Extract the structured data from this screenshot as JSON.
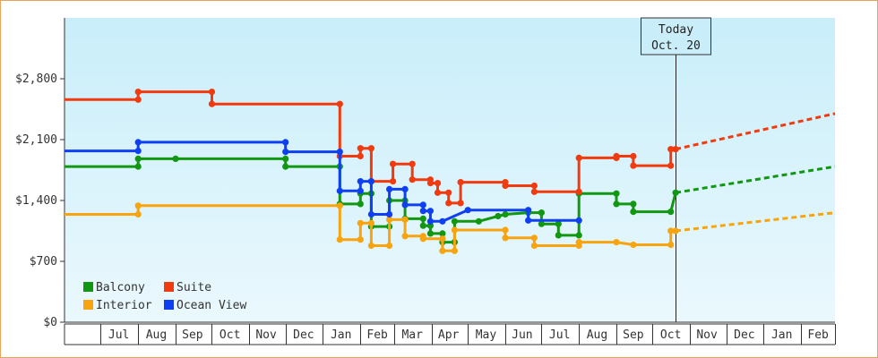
{
  "chart_data": {
    "type": "line",
    "title": "",
    "xlabel": "",
    "ylabel": "",
    "ylim": [
      0,
      3500
    ],
    "xlim": [
      "2012-06-01",
      "2014-03-01"
    ],
    "y_ticks": [
      0,
      700,
      1400,
      2100,
      2800
    ],
    "y_tick_labels": [
      "$0",
      "$700",
      "$1,400",
      "$2,100",
      "$2,800"
    ],
    "x_tick_labels": [
      {
        "label": "Jul",
        "date": "2012-07-16"
      },
      {
        "label": "Aug",
        "date": "2012-08-16"
      },
      {
        "label": "Sep",
        "date": "2012-09-15"
      },
      {
        "label": "Oct",
        "date": "2012-10-16"
      },
      {
        "label": "Nov",
        "date": "2012-11-15"
      },
      {
        "label": "Dec",
        "date": "2012-12-16"
      },
      {
        "label": "Jan",
        "date": "2013-01-16"
      },
      {
        "label": "Feb",
        "date": "2013-02-15"
      },
      {
        "label": "Mar",
        "date": "2013-03-16"
      },
      {
        "label": "Apr",
        "date": "2013-04-15"
      },
      {
        "label": "May",
        "date": "2013-05-16"
      },
      {
        "label": "Jun",
        "date": "2013-06-15"
      },
      {
        "label": "Jul",
        "date": "2013-07-16"
      },
      {
        "label": "Aug",
        "date": "2013-08-16"
      },
      {
        "label": "Sep",
        "date": "2013-09-15"
      },
      {
        "label": "Oct",
        "date": "2013-10-16"
      },
      {
        "label": "Nov",
        "date": "2013-11-15"
      },
      {
        "label": "Dec",
        "date": "2013-12-16"
      },
      {
        "label": "Jan",
        "date": "2014-01-16"
      },
      {
        "label": "Feb",
        "date": "2014-02-15"
      }
    ],
    "month_boundaries": [
      "2012-07-01",
      "2012-08-01",
      "2012-09-01",
      "2012-10-01",
      "2012-11-01",
      "2012-12-01",
      "2013-01-01",
      "2013-02-01",
      "2013-03-01",
      "2013-04-01",
      "2013-05-01",
      "2013-06-01",
      "2013-07-01",
      "2013-08-01",
      "2013-09-01",
      "2013-10-01",
      "2013-11-01",
      "2013-12-01",
      "2014-01-01",
      "2014-02-01",
      "2014-03-01"
    ],
    "grid": false,
    "background_gradient": [
      "#c9eefa",
      "#eaf8fd"
    ],
    "legend": {
      "position": "bottom-left",
      "entries": [
        "Balcony",
        "Suite",
        "Interior",
        "Ocean View"
      ]
    },
    "annotation": {
      "line1": "Today",
      "line2": "Oct. 20",
      "date": "2013-10-20"
    },
    "series": [
      {
        "name": "Balcony",
        "color": "#129712",
        "step": true,
        "points": [
          [
            "2012-06-01",
            1790
          ],
          [
            "2012-08-01",
            1790
          ],
          [
            "2012-08-01",
            1880
          ],
          [
            "2012-09-01",
            1880
          ],
          [
            "2012-12-01",
            1880
          ],
          [
            "2012-12-01",
            1790
          ],
          [
            "2013-01-15",
            1790
          ],
          [
            "2013-01-15",
            1360
          ],
          [
            "2013-02-01",
            1360
          ],
          [
            "2013-02-01",
            1480
          ],
          [
            "2013-02-10",
            1480
          ],
          [
            "2013-02-10",
            1100
          ],
          [
            "2013-02-25",
            1100
          ],
          [
            "2013-02-25",
            1400
          ],
          [
            "2013-03-10",
            1400
          ],
          [
            "2013-03-10",
            1190
          ],
          [
            "2013-03-25",
            1190
          ],
          [
            "2013-03-25",
            1110
          ],
          [
            "2013-03-31",
            1110
          ],
          [
            "2013-03-31",
            1020
          ],
          [
            "2013-04-10",
            1020
          ],
          [
            "2013-04-10",
            920
          ],
          [
            "2013-04-20",
            920
          ],
          [
            "2013-04-20",
            1160
          ],
          [
            "2013-05-10",
            1160
          ],
          [
            "2013-05-26",
            1220
          ],
          [
            "2013-06-01",
            1240
          ],
          [
            "2013-06-20",
            1260
          ],
          [
            "2013-07-01",
            1260
          ],
          [
            "2013-07-01",
            1130
          ],
          [
            "2013-07-15",
            1130
          ],
          [
            "2013-07-15",
            1000
          ],
          [
            "2013-08-01",
            1000
          ],
          [
            "2013-08-01",
            1480
          ],
          [
            "2013-09-01",
            1480
          ],
          [
            "2013-09-01",
            1360
          ],
          [
            "2013-09-15",
            1360
          ],
          [
            "2013-09-15",
            1270
          ],
          [
            "2013-10-16",
            1270
          ],
          [
            "2013-10-20",
            1490
          ]
        ],
        "projection": [
          [
            "2013-10-20",
            1490
          ],
          [
            "2014-03-01",
            1790
          ]
        ]
      },
      {
        "name": "Suite",
        "color": "#f13b0e",
        "step": true,
        "points": [
          [
            "2012-06-01",
            2560
          ],
          [
            "2012-08-01",
            2560
          ],
          [
            "2012-08-01",
            2650
          ],
          [
            "2012-10-01",
            2650
          ],
          [
            "2012-10-01",
            2510
          ],
          [
            "2013-01-15",
            2510
          ],
          [
            "2013-01-15",
            1910
          ],
          [
            "2013-02-01",
            1910
          ],
          [
            "2013-02-01",
            2000
          ],
          [
            "2013-02-10",
            2000
          ],
          [
            "2013-02-10",
            1620
          ],
          [
            "2013-02-28",
            1620
          ],
          [
            "2013-02-28",
            1820
          ],
          [
            "2013-03-16",
            1820
          ],
          [
            "2013-03-16",
            1640
          ],
          [
            "2013-03-31",
            1640
          ],
          [
            "2013-03-31",
            1600
          ],
          [
            "2013-04-06",
            1600
          ],
          [
            "2013-04-06",
            1490
          ],
          [
            "2013-04-15",
            1490
          ],
          [
            "2013-04-15",
            1370
          ],
          [
            "2013-04-25",
            1370
          ],
          [
            "2013-04-25",
            1610
          ],
          [
            "2013-06-01",
            1610
          ],
          [
            "2013-06-01",
            1570
          ],
          [
            "2013-06-25",
            1570
          ],
          [
            "2013-06-25",
            1500
          ],
          [
            "2013-08-01",
            1500
          ],
          [
            "2013-08-01",
            1890
          ],
          [
            "2013-09-01",
            1890
          ],
          [
            "2013-09-01",
            1910
          ],
          [
            "2013-09-15",
            1910
          ],
          [
            "2013-09-15",
            1800
          ],
          [
            "2013-10-16",
            1800
          ],
          [
            "2013-10-16",
            1990
          ],
          [
            "2013-10-20",
            1990
          ]
        ],
        "projection": [
          [
            "2013-10-20",
            1990
          ],
          [
            "2014-03-01",
            2400
          ]
        ]
      },
      {
        "name": "Interior",
        "color": "#f8a40f",
        "step": true,
        "points": [
          [
            "2012-06-01",
            1240
          ],
          [
            "2012-08-01",
            1240
          ],
          [
            "2012-08-01",
            1340
          ],
          [
            "2013-01-15",
            1340
          ],
          [
            "2013-01-15",
            950
          ],
          [
            "2013-02-01",
            950
          ],
          [
            "2013-02-01",
            1140
          ],
          [
            "2013-02-10",
            1140
          ],
          [
            "2013-02-10",
            880
          ],
          [
            "2013-02-25",
            880
          ],
          [
            "2013-02-25",
            1180
          ],
          [
            "2013-03-10",
            1180
          ],
          [
            "2013-03-10",
            990
          ],
          [
            "2013-03-25",
            990
          ],
          [
            "2013-03-25",
            960
          ],
          [
            "2013-04-10",
            960
          ],
          [
            "2013-04-10",
            820
          ],
          [
            "2013-04-20",
            820
          ],
          [
            "2013-04-20",
            1060
          ],
          [
            "2013-06-01",
            1060
          ],
          [
            "2013-06-01",
            970
          ],
          [
            "2013-06-25",
            970
          ],
          [
            "2013-06-25",
            880
          ],
          [
            "2013-08-01",
            880
          ],
          [
            "2013-08-01",
            920
          ],
          [
            "2013-09-01",
            920
          ],
          [
            "2013-09-15",
            890
          ],
          [
            "2013-10-16",
            890
          ],
          [
            "2013-10-16",
            1050
          ],
          [
            "2013-10-20",
            1050
          ]
        ],
        "projection": [
          [
            "2013-10-20",
            1050
          ],
          [
            "2014-03-01",
            1260
          ]
        ]
      },
      {
        "name": "Ocean View",
        "color": "#0e40f1",
        "step": true,
        "points": [
          [
            "2012-06-01",
            1970
          ],
          [
            "2012-08-01",
            1970
          ],
          [
            "2012-08-01",
            2070
          ],
          [
            "2012-12-01",
            2070
          ],
          [
            "2012-12-01",
            1960
          ],
          [
            "2013-01-15",
            1960
          ],
          [
            "2013-01-15",
            1510
          ],
          [
            "2013-02-01",
            1510
          ],
          [
            "2013-02-01",
            1620
          ],
          [
            "2013-02-10",
            1620
          ],
          [
            "2013-02-10",
            1240
          ],
          [
            "2013-02-25",
            1240
          ],
          [
            "2013-02-25",
            1530
          ],
          [
            "2013-03-10",
            1530
          ],
          [
            "2013-03-10",
            1350
          ],
          [
            "2013-03-25",
            1350
          ],
          [
            "2013-03-25",
            1280
          ],
          [
            "2013-03-31",
            1280
          ],
          [
            "2013-03-31",
            1160
          ],
          [
            "2013-04-10",
            1160
          ],
          [
            "2013-05-01",
            1290
          ],
          [
            "2013-06-20",
            1290
          ],
          [
            "2013-06-20",
            1170
          ],
          [
            "2013-08-01",
            1170
          ]
        ],
        "projection": []
      }
    ]
  }
}
